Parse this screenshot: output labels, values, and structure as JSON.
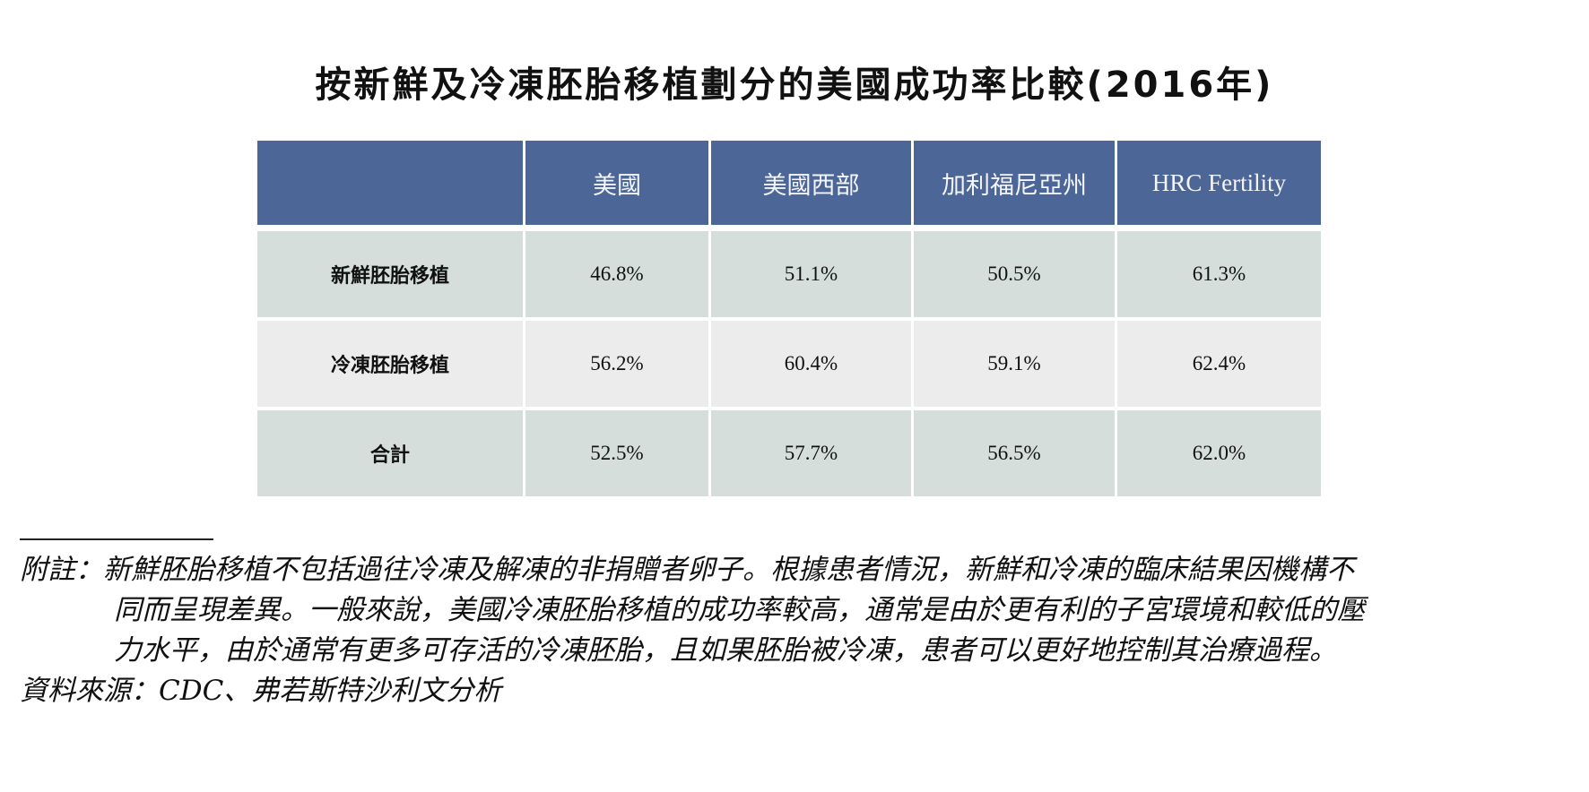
{
  "title": "按新鮮及冷凍胚胎移植劃分的美國成功率比較(2016年)",
  "table": {
    "headers": [
      "",
      "美國",
      "美國西部",
      "加利福尼亞州",
      "HRC Fertility"
    ],
    "rows": [
      {
        "label": "新鮮胚胎移植",
        "values": [
          "46.8%",
          "51.1%",
          "50.5%",
          "61.3%"
        ]
      },
      {
        "label": "冷凍胚胎移植",
        "values": [
          "56.2%",
          "60.4%",
          "59.1%",
          "62.4%"
        ]
      },
      {
        "label": "合計",
        "values": [
          "52.5%",
          "57.7%",
          "56.5%",
          "62.0%"
        ]
      }
    ]
  },
  "colors": {
    "header_bg": "#4d6698",
    "row_alt_bg": "#d5dedb",
    "row_light_bg": "#ececec"
  },
  "footnote": {
    "lines": [
      "附註：新鮮胚胎移植不包括過往冷凍及解凍的非捐贈者卵子。根據患者情況，新鮮和冷凍的臨床結果因機構不",
      "同而呈現差異。一般來說，美國冷凍胚胎移植的成功率較高，通常是由於更有利的子宮環境和較低的壓",
      "力水平，由於通常有更多可存活的冷凍胚胎，且如果胚胎被冷凍，患者可以更好地控制其治療過程。"
    ],
    "source": "資料來源：CDC、弗若斯特沙利文分析"
  }
}
